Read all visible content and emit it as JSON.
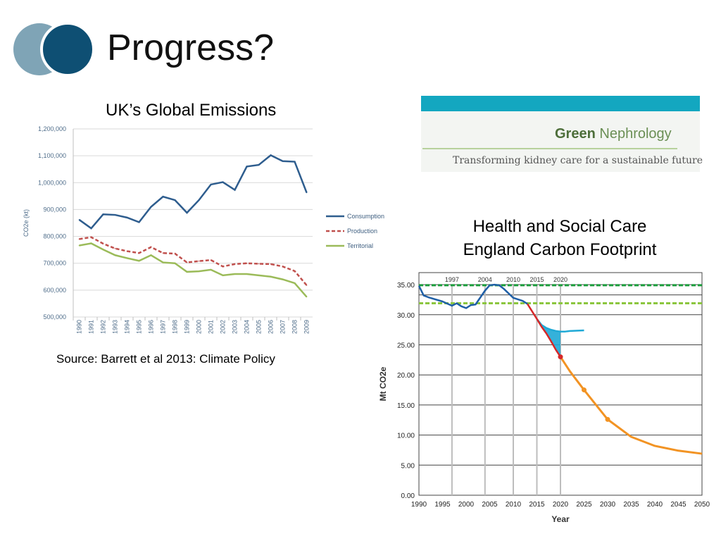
{
  "slide": {
    "title": "Progress?",
    "colors": {
      "circle_light": "#7fa4b6",
      "circle_dark": "#0e4f73"
    }
  },
  "logo": {
    "name_bold": "Green",
    "name_rest": "Nephrology",
    "tagline": "Transforming kidney care for a sustainable future",
    "bar_color": "#13a7c0"
  },
  "chart_data": [
    {
      "type": "line",
      "title": "UK’s Global Emissions",
      "ylabel": "CO2e (kt)",
      "xlabel": "",
      "ylim": [
        500000,
        1200000
      ],
      "yticks": [
        "500,000",
        "600,000",
        "700,000",
        "800,000",
        "900,000",
        "1,000,000",
        "1,100,000",
        "1,200,000"
      ],
      "categories": [
        "1990",
        "1991",
        "1992",
        "1993",
        "1994",
        "1995",
        "1996",
        "1997",
        "1998",
        "1999",
        "2000",
        "2001",
        "2002",
        "2003",
        "2004",
        "2005",
        "2006",
        "2007",
        "2008",
        "2009"
      ],
      "grid": true,
      "legend": "right",
      "series": [
        {
          "name": "Consumption",
          "color": "#2e5d8e",
          "dash": "solid",
          "values": [
            862000,
            830000,
            882000,
            880000,
            870000,
            853000,
            910000,
            948000,
            935000,
            888000,
            935000,
            993000,
            1002000,
            973000,
            1060000,
            1066000,
            1102000,
            1080000,
            1078000,
            963000
          ]
        },
        {
          "name": "Production",
          "color": "#c0504d",
          "dash": "dashed",
          "values": [
            790000,
            797000,
            773000,
            755000,
            745000,
            738000,
            760000,
            738000,
            736000,
            703000,
            708000,
            712000,
            688000,
            697000,
            700000,
            698000,
            697000,
            688000,
            671000,
            618000
          ]
        },
        {
          "name": "Territorial",
          "color": "#9bbb59",
          "dash": "solid",
          "values": [
            766000,
            774000,
            751000,
            730000,
            719000,
            709000,
            730000,
            703000,
            700000,
            668000,
            670000,
            676000,
            655000,
            660000,
            660000,
            655000,
            650000,
            640000,
            626000,
            575000
          ]
        }
      ],
      "source": "Source: Barrett et al 2013: Climate Policy"
    },
    {
      "type": "line",
      "title": "Health and Social Care England Carbon Footprint",
      "title_lines": [
        "Health and Social Care",
        "England Carbon Footprint"
      ],
      "xlabel": "Year",
      "ylabel": "Mt CO2e",
      "xlim": [
        1990,
        2050
      ],
      "ylim": [
        0,
        37
      ],
      "xticks": [
        "1990",
        "1995",
        "2000",
        "2005",
        "2010",
        "2015",
        "2020",
        "2025",
        "2030",
        "2035",
        "2040",
        "2045",
        "2050"
      ],
      "yticks": [
        "0.00",
        "5.00",
        "10.00",
        "15.00",
        "20.00",
        "25.00",
        "30.00",
        "35.00"
      ],
      "marker_years": [
        "1997",
        "2004",
        "2010",
        "2015",
        "2020"
      ],
      "reference_lines": [
        {
          "value": 34.9,
          "color": "#1a9a3a"
        },
        {
          "value": 31.9,
          "color": "#8cc63f"
        }
      ],
      "series": [
        {
          "color": "#1f5fa6",
          "x": [
            1990,
            1991,
            1992,
            1995,
            1997,
            1998,
            1999,
            2000,
            2001,
            2002,
            2004,
            2005,
            2006,
            2007,
            2008,
            2010,
            2012,
            2013
          ],
          "y": [
            34.8,
            33.2,
            32.9,
            32.2,
            31.5,
            31.9,
            31.4,
            31.1,
            31.6,
            31.7,
            34.0,
            34.9,
            35.0,
            34.9,
            34.3,
            32.8,
            32.3,
            31.8
          ]
        },
        {
          "color": "#1fa9d6",
          "x": [
            2015,
            2016,
            2017,
            2018,
            2019,
            2020,
            2021,
            2022,
            2025
          ],
          "y": [
            29.3,
            28.3,
            27.8,
            27.5,
            27.3,
            27.2,
            27.2,
            27.3,
            27.4
          ]
        },
        {
          "color": "#d62728",
          "x": [
            2013,
            2015,
            2016,
            2017,
            2018,
            2019,
            2020
          ],
          "y": [
            31.8,
            29.3,
            28.0,
            26.9,
            25.6,
            24.2,
            23.0
          ]
        },
        {
          "color": "#f29323",
          "x": [
            2020,
            2022,
            2025,
            2030,
            2035,
            2040,
            2045,
            2050
          ],
          "y": [
            23.0,
            20.6,
            17.5,
            12.6,
            9.7,
            8.2,
            7.4,
            6.9
          ]
        }
      ],
      "points": [
        {
          "x": 2020,
          "y": 23.0,
          "color": "#d62728"
        },
        {
          "x": 2025,
          "y": 17.5,
          "color": "#f29323"
        },
        {
          "x": 2030,
          "y": 12.6,
          "color": "#f29323"
        }
      ],
      "gap_fill_color": "#1fa9d6"
    }
  ]
}
